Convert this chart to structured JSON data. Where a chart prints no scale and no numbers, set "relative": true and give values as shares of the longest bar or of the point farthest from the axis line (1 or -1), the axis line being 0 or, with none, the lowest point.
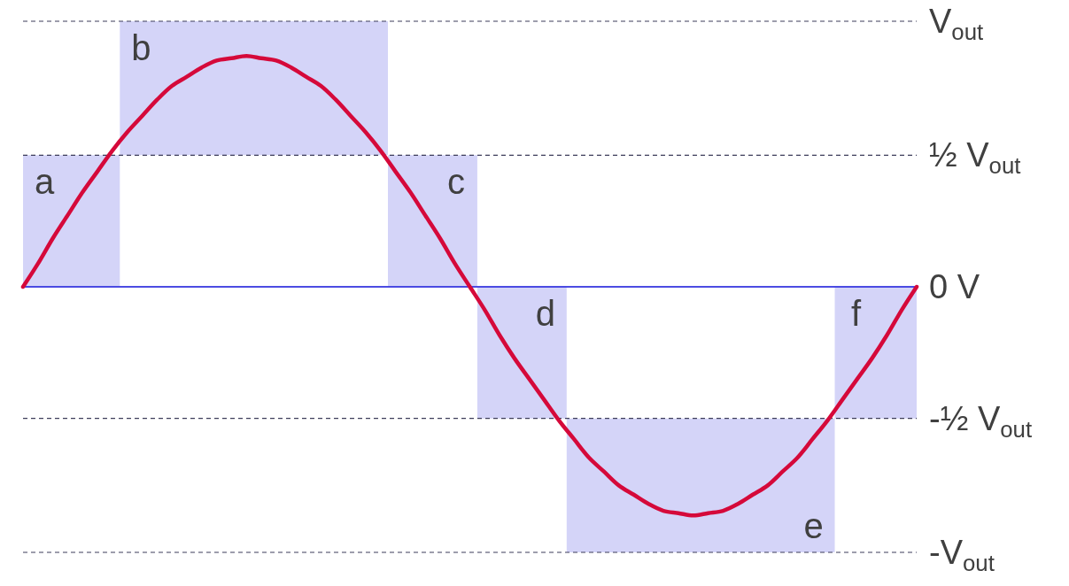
{
  "chart_data": {
    "type": "line",
    "relative": true,
    "categories": [
      null,
      null,
      null,
      null,
      null,
      null,
      null,
      null,
      null,
      null,
      null,
      null,
      null,
      null,
      null,
      null,
      null,
      null,
      null,
      null,
      null,
      null,
      null,
      null,
      null,
      null,
      null,
      null,
      null,
      null,
      null,
      null,
      null,
      null,
      null,
      null,
      null,
      null,
      null,
      null,
      null,
      null,
      null,
      null,
      null,
      null,
      null,
      null,
      null,
      null,
      null,
      null,
      null,
      null,
      null,
      null,
      null,
      null,
      null,
      null,
      null
    ],
    "series": [
      {
        "color": "#d5093a",
        "values": [
          0,
          0.1,
          0.21,
          0.31,
          0.41,
          0.5,
          0.59,
          0.67,
          0.74,
          0.81,
          0.87,
          0.91,
          0.95,
          0.98,
          0.99,
          1,
          0.99,
          0.98,
          0.95,
          0.91,
          0.87,
          0.81,
          0.74,
          0.67,
          0.59,
          0.5,
          0.41,
          0.31,
          0.21,
          0.1,
          0,
          -0.1,
          -0.21,
          -0.31,
          -0.4,
          -0.49,
          -0.58,
          -0.66,
          -0.74,
          -0.8,
          -0.86,
          -0.9,
          -0.94,
          -0.97,
          -0.98,
          -0.99,
          -0.98,
          -0.97,
          -0.94,
          -0.9,
          -0.86,
          -0.8,
          -0.74,
          -0.66,
          -0.58,
          -0.49,
          -0.4,
          -0.31,
          -0.21,
          -0.1,
          0
        ],
        "lower": [
          0,
          0,
          0,
          0,
          0,
          0,
          0,
          0.57,
          0.57,
          0.57,
          0.57,
          0.57,
          0.57,
          0.57,
          0.57,
          0.57,
          0.57,
          0.57,
          0.57,
          0.57,
          0.57,
          0.57,
          0.57,
          0.57,
          0.57,
          0,
          0,
          0,
          0,
          0,
          0,
          -0.57,
          -0.57,
          -0.57,
          -0.57,
          -0.57,
          -0.57,
          -1.15,
          -1.15,
          -1.15,
          -1.15,
          -1.15,
          -1.15,
          -1.15,
          -1.15,
          -1.15,
          -1.15,
          -1.15,
          -1.15,
          -1.15,
          -1.15,
          -1.15,
          -1.15,
          -1.15,
          -1.15,
          -0.57,
          -0.57,
          -0.57,
          -0.57,
          -0.57,
          -0.57
        ],
        "upper": [
          0.57,
          0.57,
          0.57,
          0.57,
          0.57,
          0.57,
          0.57,
          1.15,
          1.15,
          1.15,
          1.15,
          1.15,
          1.15,
          1.15,
          1.15,
          1.15,
          1.15,
          1.15,
          1.15,
          1.15,
          1.15,
          1.15,
          1.15,
          1.15,
          1.15,
          0.57,
          0.57,
          0.57,
          0.57,
          0.57,
          0.57,
          0,
          0,
          0,
          0,
          0,
          0,
          -0.57,
          -0.57,
          -0.57,
          -0.57,
          -0.57,
          -0.57,
          -0.57,
          -0.57,
          -0.57,
          -0.57,
          -0.57,
          -0.57,
          -0.57,
          -0.57,
          -0.57,
          -0.57,
          -0.57,
          -0.57,
          0,
          0,
          0,
          0,
          0,
          0
        ]
      }
    ],
    "ref_lines": [
      {
        "axis": "y",
        "value": 1.15,
        "label": "V$_{out}$",
        "line_style": "dashed",
        "color": "#3c3c5a"
      },
      {
        "axis": "y",
        "value": 0.57,
        "label": "½ V$_{out}$",
        "line_style": "dashed",
        "color": "#3c3c5a"
      },
      {
        "axis": "y",
        "value": 0,
        "label": "0 V",
        "color": "#4040e0"
      },
      {
        "axis": "y",
        "value": -0.57,
        "label": "-½ V$_{out}$",
        "line_style": "dashed",
        "color": "#3c3c5a"
      },
      {
        "axis": "y",
        "value": -1.15,
        "label": "-V$_{out}$",
        "line_style": "dashed",
        "color": "#3c3c5a"
      }
    ],
    "annotations": [
      "a",
      "b",
      "c",
      "d",
      "e",
      "f"
    ]
  }
}
